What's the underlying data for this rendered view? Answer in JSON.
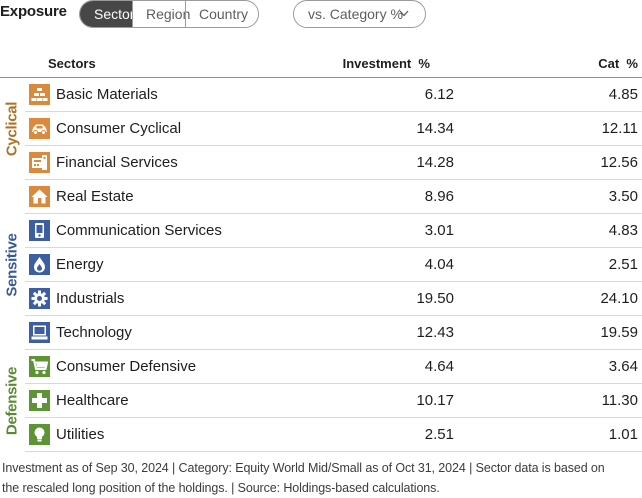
{
  "header": {
    "title": "Exposure",
    "tabs": [
      {
        "label": "Sector",
        "active": true
      },
      {
        "label": "Region",
        "active": false
      },
      {
        "label": "Country",
        "active": false
      }
    ],
    "view_select": {
      "label": "vs. Category %",
      "icon": "chevron-down-icon"
    }
  },
  "table": {
    "col_sectors": "Sectors",
    "col_investment": "Investment  %",
    "col_category": "Cat  %",
    "groups": [
      {
        "label": "Cyclical",
        "color": "#a8742a"
      },
      {
        "label": "Sensitive",
        "color": "#3a5a94"
      },
      {
        "label": "Defensive",
        "color": "#5b8a35"
      }
    ],
    "rows": [
      {
        "sector": "Basic Materials",
        "investment": "6.12",
        "category": "4.85",
        "icon": "basic-materials-icon",
        "color": "#d98a3d"
      },
      {
        "sector": "Consumer Cyclical",
        "investment": "14.34",
        "category": "12.11",
        "icon": "consumer-cyclical-icon",
        "color": "#d98a3d"
      },
      {
        "sector": "Financial Services",
        "investment": "14.28",
        "category": "12.56",
        "icon": "financial-services-icon",
        "color": "#d98a3d"
      },
      {
        "sector": "Real Estate",
        "investment": "8.96",
        "category": "3.50",
        "icon": "real-estate-icon",
        "color": "#d98a3d"
      },
      {
        "sector": "Communication Services",
        "investment": "3.01",
        "category": "4.83",
        "icon": "communication-services-icon",
        "color": "#3d5f9f"
      },
      {
        "sector": "Energy",
        "investment": "4.04",
        "category": "2.51",
        "icon": "energy-icon",
        "color": "#3d5f9f"
      },
      {
        "sector": "Industrials",
        "investment": "19.50",
        "category": "24.10",
        "icon": "industrials-icon",
        "color": "#3d5f9f"
      },
      {
        "sector": "Technology",
        "investment": "12.43",
        "category": "19.59",
        "icon": "technology-icon",
        "color": "#3d5f9f"
      },
      {
        "sector": "Consumer Defensive",
        "investment": "4.64",
        "category": "3.64",
        "icon": "consumer-defensive-icon",
        "color": "#5e9435"
      },
      {
        "sector": "Healthcare",
        "investment": "10.17",
        "category": "11.30",
        "icon": "healthcare-icon",
        "color": "#5e9435"
      },
      {
        "sector": "Utilities",
        "investment": "2.51",
        "category": "1.01",
        "icon": "utilities-icon",
        "color": "#5e9435"
      }
    ]
  },
  "footnote": {
    "line1": "Investment as of Sep 30, 2024 | Category: Equity World Mid/Small as of Oct 31, 2024 | Sector data is based on",
    "line2": "the rescaled long position of the holdings. | Source: Holdings-based calculations."
  }
}
